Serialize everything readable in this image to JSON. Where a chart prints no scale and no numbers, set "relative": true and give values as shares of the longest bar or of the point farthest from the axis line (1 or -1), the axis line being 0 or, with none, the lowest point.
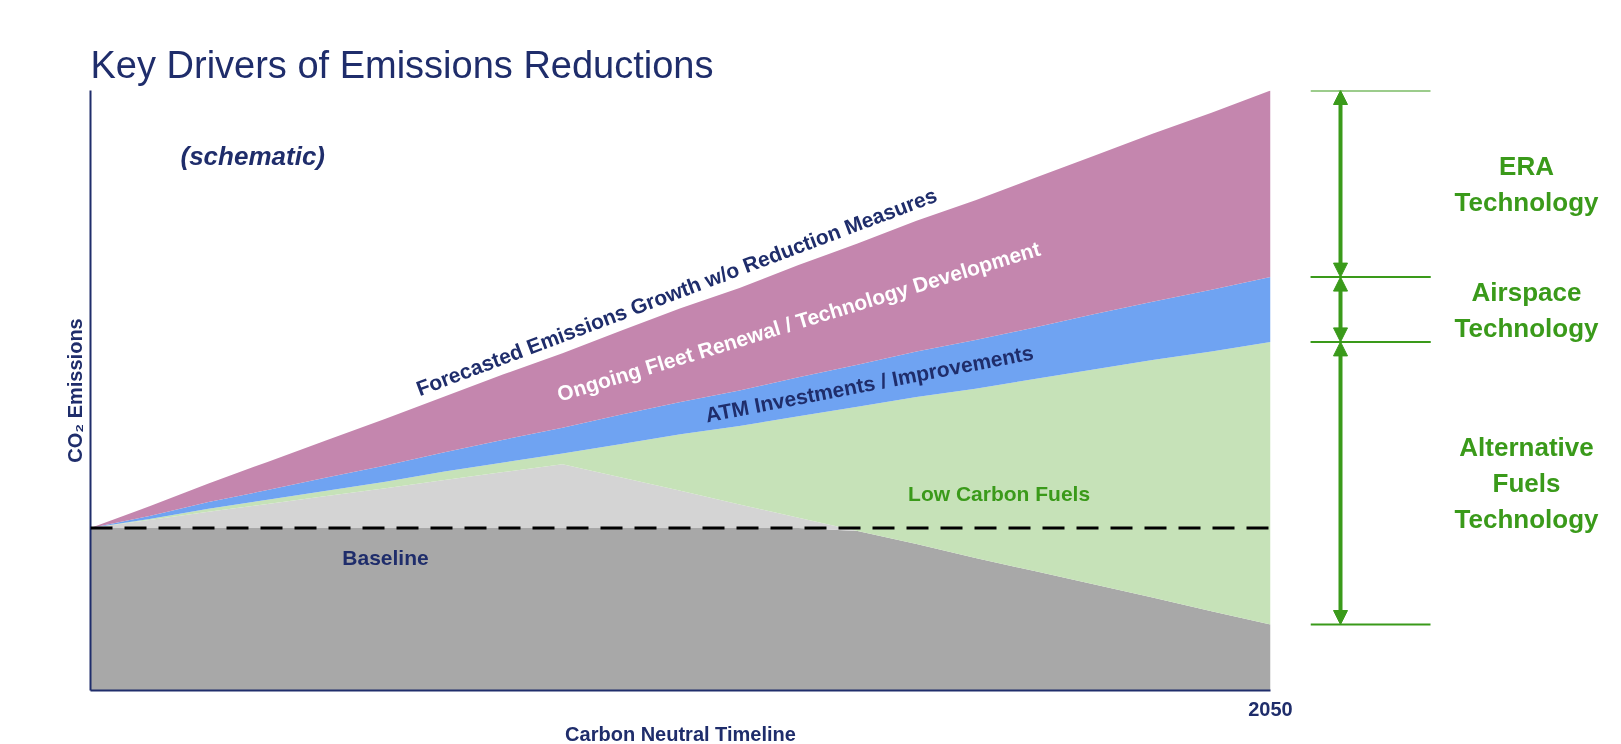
{
  "chart_data": {
    "type": "area",
    "title": "Key Drivers of Emissions Reductions",
    "xlabel": "Carbon Neutral Timeline",
    "ylabel": "CO₂ Emissions",
    "relative": true,
    "stacked": true,
    "tick_labels": "x",
    "categories": [
      null,
      null,
      null,
      null,
      null,
      null,
      null,
      null,
      null,
      null,
      null,
      null,
      null,
      null,
      null,
      null,
      null,
      null,
      null,
      null,
      null
    ],
    "series": [
      {
        "name": "Baseline",
        "color": "#a8a8a8",
        "values": [
          0.271,
          0.271,
          0.271,
          0.271,
          0.271,
          0.271,
          0.271,
          0.271,
          0.271,
          0.271,
          0.271,
          0.271,
          0.271,
          0.266,
          0.244,
          0.221,
          0.199,
          0.177,
          0.155,
          0.132,
          0.11
        ]
      },
      {
        "color": "#d4d4d4",
        "values": [
          0,
          0.013,
          0.027,
          0.04,
          0.053,
          0.066,
          0.08,
          0.093,
          0.106,
          0.084,
          0.062,
          0.039,
          0.017,
          0,
          0,
          0,
          0,
          0,
          0,
          0,
          0
        ]
      },
      {
        "name": "Low Carbon Fuels",
        "color": "#c6e2b8",
        "values": [
          0,
          0.002,
          0.005,
          0.007,
          0.009,
          0.011,
          0.014,
          0.016,
          0.018,
          0.056,
          0.094,
          0.131,
          0.169,
          0.207,
          0.245,
          0.282,
          0.32,
          0.358,
          0.396,
          0.433,
          0.471
        ]
      },
      {
        "name": "ATM Investments / Improvements",
        "color": "#6fa3f2",
        "values": [
          0,
          0.005,
          0.011,
          0.016,
          0.022,
          0.027,
          0.032,
          0.038,
          0.043,
          0.049,
          0.054,
          0.059,
          0.065,
          0.07,
          0.076,
          0.081,
          0.086,
          0.092,
          0.097,
          0.103,
          0.108
        ]
      },
      {
        "name": "Ongoing Fleet Renewal / Technology Development",
        "color": "#c486ae",
        "values": [
          0,
          0.016,
          0.031,
          0.047,
          0.062,
          0.078,
          0.093,
          0.109,
          0.124,
          0.14,
          0.156,
          0.171,
          0.187,
          0.202,
          0.218,
          0.233,
          0.249,
          0.264,
          0.28,
          0.295,
          0.311
        ]
      }
    ],
    "ref_lines": [
      {
        "axis": "y",
        "value": 0.271,
        "color": "#000000",
        "line_style": "dashed"
      }
    ],
    "annotations": [
      "2050",
      "(schematic)",
      "Forecasted Emissions Growth w/o Reduction Measures",
      "ERA Technology",
      "Airspace Technology",
      "Alternative Fuels Technology"
    ]
  }
}
